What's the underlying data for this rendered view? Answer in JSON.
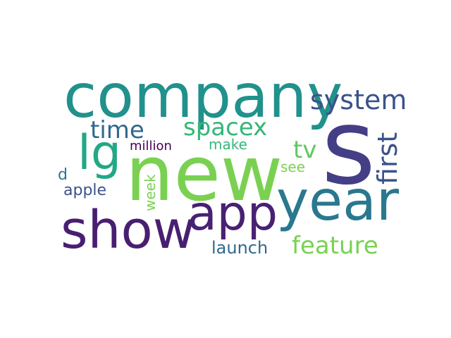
{
  "words": [
    {
      "id": "company",
      "text": "company",
      "color": "#21918c"
    },
    {
      "id": "s",
      "text": "s",
      "color": "#433e85"
    },
    {
      "id": "new",
      "text": "new",
      "color": "#7ad151"
    },
    {
      "id": "year",
      "text": "year",
      "color": "#2a788e"
    },
    {
      "id": "show",
      "text": "show",
      "color": "#481f70"
    },
    {
      "id": "app",
      "text": "app",
      "color": "#482173"
    },
    {
      "id": "lg",
      "text": "lg",
      "color": "#22a884"
    },
    {
      "id": "system",
      "text": "system",
      "color": "#3b528b"
    },
    {
      "id": "time",
      "text": "time",
      "color": "#31688e"
    },
    {
      "id": "spacex",
      "text": "spacex",
      "color": "#35b779"
    },
    {
      "id": "feature",
      "text": "feature",
      "color": "#7ad151"
    },
    {
      "id": "first",
      "text": "first",
      "color": "#3b528b"
    },
    {
      "id": "tv",
      "text": "tv",
      "color": "#5ec962"
    },
    {
      "id": "launch",
      "text": "launch",
      "color": "#31688e"
    },
    {
      "id": "million",
      "text": "million",
      "color": "#440154"
    },
    {
      "id": "make",
      "text": "make",
      "color": "#35b779"
    },
    {
      "id": "apple",
      "text": "apple",
      "color": "#3b528b"
    },
    {
      "id": "week",
      "text": "week",
      "color": "#7ad151"
    },
    {
      "id": "see",
      "text": "see",
      "color": "#7ad151"
    },
    {
      "id": "d",
      "text": "d",
      "color": "#2a788e"
    }
  ]
}
